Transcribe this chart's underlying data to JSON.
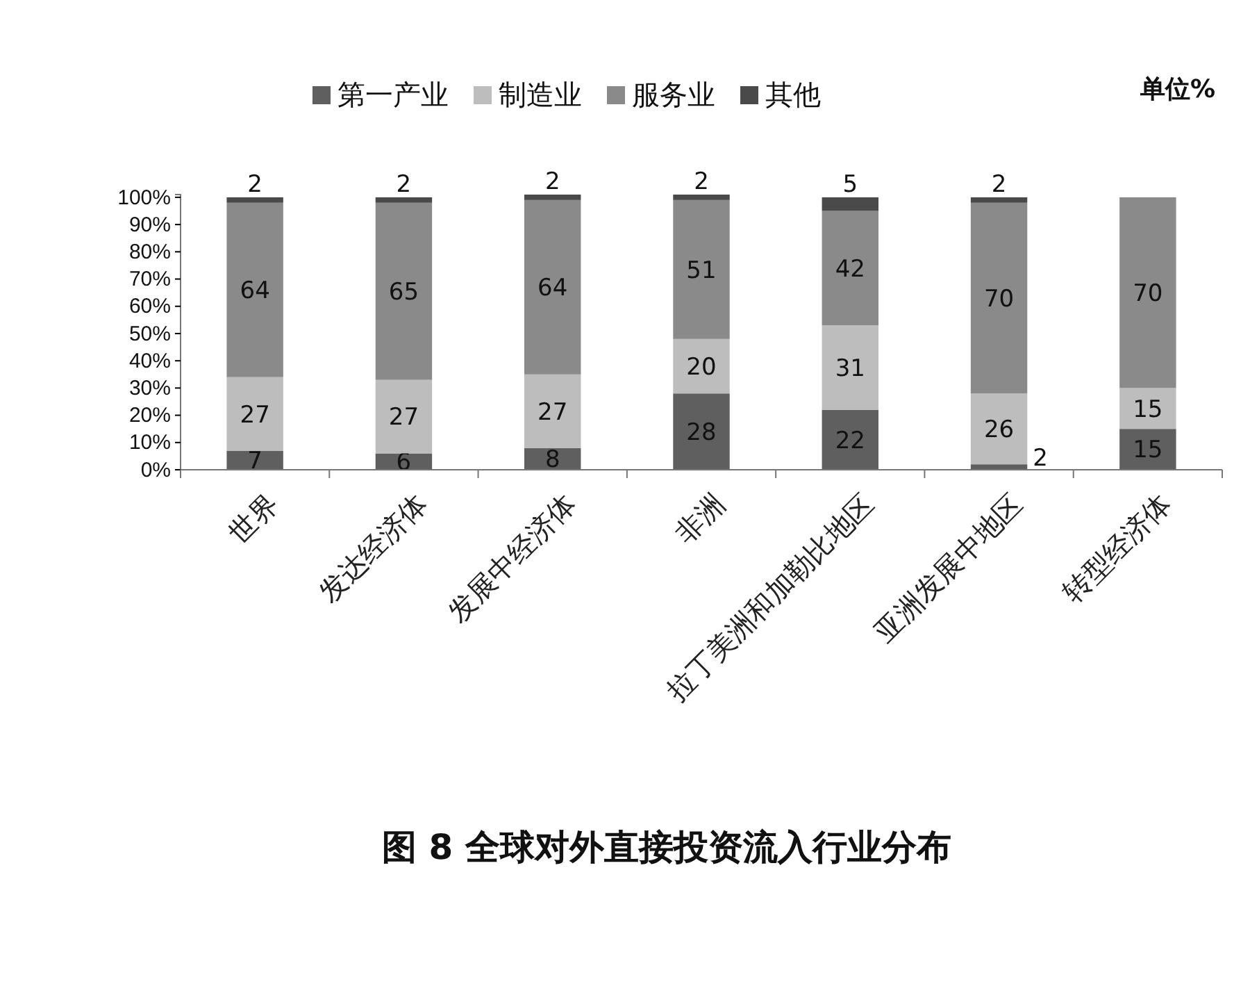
{
  "chart_data": {
    "type": "bar",
    "stacked": true,
    "title": "图 8 全球对外直接投资流入行业分布",
    "annotations": [
      "单位%"
    ],
    "categories": [
      "世界",
      "发达经济体",
      "发展中经济体",
      "非洲",
      "拉丁美洲和加勒比地区",
      "亚洲发展中地区",
      "转型经济体"
    ],
    "series": [
      {
        "name": "第一产业",
        "color": "#5f5f5f",
        "values": [
          7,
          6,
          8,
          28,
          22,
          2,
          15
        ]
      },
      {
        "name": "制造业",
        "color": "#bdbdbd",
        "values": [
          27,
          27,
          27,
          20,
          31,
          26,
          15
        ]
      },
      {
        "name": "服务业",
        "color": "#8a8a8a",
        "values": [
          64,
          65,
          64,
          51,
          42,
          70,
          70
        ]
      },
      {
        "name": "其他",
        "color": "#4a4a4a",
        "values": [
          2,
          2,
          2,
          2,
          5,
          2,
          null
        ]
      }
    ],
    "ylim": [
      0,
      101
    ],
    "yticks": [
      {
        "value": 0,
        "label": "0%"
      },
      {
        "value": 10,
        "label": "10%"
      },
      {
        "value": 20,
        "label": "20%"
      },
      {
        "value": 30,
        "label": "30%"
      },
      {
        "value": 40,
        "label": "40%"
      },
      {
        "value": 50,
        "label": "50%"
      },
      {
        "value": 60,
        "label": "60%"
      },
      {
        "value": 70,
        "label": "70%"
      },
      {
        "value": 80,
        "label": "80%"
      },
      {
        "value": 90,
        "label": "90%"
      },
      {
        "value": 100,
        "label": "100%"
      }
    ],
    "grid": false,
    "legend": "top",
    "data_labels": true
  }
}
